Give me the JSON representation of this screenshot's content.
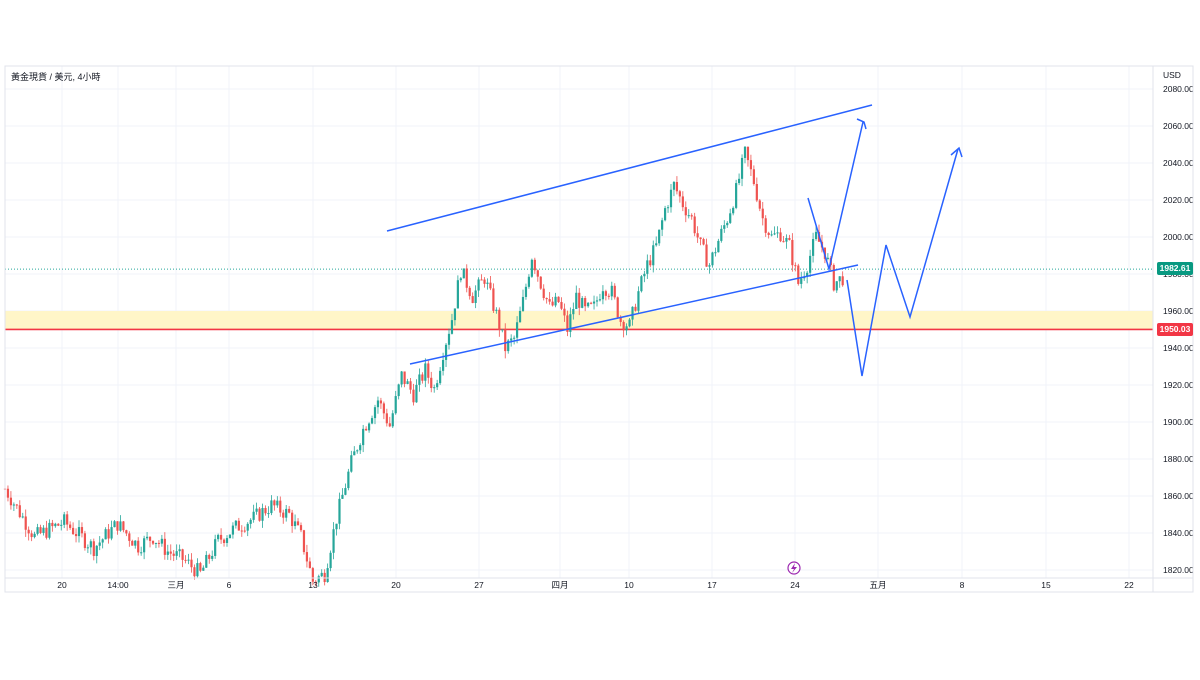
{
  "header": {
    "symbol_title": "黃金現貨 / 美元, 4小時",
    "currency": "USD"
  },
  "markers": {
    "current_price": "1982.61",
    "support_price": "1950.03",
    "event_icon": "lightning-icon"
  },
  "colors": {
    "up": "#26a69a",
    "down": "#ef5350",
    "channel": "#2962ff",
    "support_line": "#f23645",
    "support_zone": "#fff6c8",
    "current_price_tag": "#089981",
    "event_icon": "#9c27b0"
  },
  "chart_data": {
    "type": "candlestick",
    "y_axis": {
      "range": [
        1815,
        2085
      ],
      "tick_labels": [
        "2080.00",
        "2060.00",
        "2040.00",
        "2020.00",
        "2000.00",
        "1980.00",
        "1960.00",
        "1940.00",
        "1920.00",
        "1900.00",
        "1880.00",
        "1860.00",
        "1840.00",
        "1820.00"
      ]
    },
    "x_axis": {
      "tick_labels": [
        "20",
        "14:00",
        "三月",
        "6",
        "13",
        "20",
        "27",
        "四月",
        "10",
        "17",
        "24",
        "五月",
        "8",
        "15",
        "22"
      ]
    },
    "price_path": [
      [
        0,
        1864
      ],
      [
        10,
        1838
      ],
      [
        20,
        1846
      ],
      [
        30,
        1832
      ],
      [
        38,
        1845
      ],
      [
        45,
        1833
      ],
      [
        50,
        1838
      ],
      [
        55,
        1830
      ],
      [
        60,
        1826
      ],
      [
        66,
        1818
      ],
      [
        72,
        1836
      ],
      [
        78,
        1843
      ],
      [
        84,
        1848
      ],
      [
        90,
        1855
      ],
      [
        96,
        1850
      ],
      [
        100,
        1838
      ],
      [
        104,
        1814
      ],
      [
        108,
        1818
      ],
      [
        112,
        1848
      ],
      [
        117,
        1878
      ],
      [
        121,
        1896
      ],
      [
        126,
        1912
      ],
      [
        130,
        1898
      ],
      [
        134,
        1925
      ],
      [
        138,
        1915
      ],
      [
        142,
        1928
      ],
      [
        145,
        1918
      ],
      [
        148,
        1938
      ],
      [
        151,
        1956
      ],
      [
        154,
        1982
      ],
      [
        158,
        1968
      ],
      [
        162,
        1978
      ],
      [
        166,
        1958
      ],
      [
        169,
        1940
      ],
      [
        172,
        1945
      ],
      [
        175,
        1965
      ],
      [
        178,
        1990
      ],
      [
        181,
        1975
      ],
      [
        184,
        1962
      ],
      [
        187,
        1965
      ],
      [
        190,
        1950
      ],
      [
        193,
        1968
      ],
      [
        196,
        1960
      ],
      [
        199,
        1962
      ],
      [
        202,
        1974
      ],
      [
        205,
        1970
      ],
      [
        208,
        1955
      ],
      [
        211,
        1952
      ],
      [
        214,
        1970
      ],
      [
        217,
        1985
      ],
      [
        220,
        1995
      ],
      [
        223,
        2015
      ],
      [
        226,
        2028
      ],
      [
        229,
        2018
      ],
      [
        232,
        2010
      ],
      [
        235,
        1995
      ],
      [
        238,
        1985
      ],
      [
        241,
        1998
      ],
      [
        244,
        2010
      ],
      [
        247,
        2025
      ],
      [
        250,
        2045
      ],
      [
        253,
        2030
      ],
      [
        256,
        2010
      ],
      [
        259,
        2000
      ],
      [
        262,
        2002
      ],
      [
        265,
        1995
      ],
      [
        268,
        1975
      ],
      [
        271,
        1985
      ],
      [
        274,
        2000
      ],
      [
        277,
        1992
      ],
      [
        280,
        1975
      ],
      [
        283,
        1978
      ]
    ],
    "channel": {
      "upper": [
        [
          0,
          2003
        ],
        [
          200,
          2070
        ]
      ],
      "lower": [
        [
          10,
          1931
        ],
        [
          200,
          1984
        ]
      ]
    },
    "horizontal_levels": [
      1950.03,
      1982.61
    ],
    "support_zone": [
      1950,
      1960
    ],
    "projections": [
      [
        [
          190,
          2021
        ],
        [
          199,
          1982
        ],
        [
          211,
          2061
        ]
      ],
      [
        [
          198,
          1976
        ],
        [
          204,
          1925
        ],
        [
          216,
          1995
        ],
        [
          223,
          1957
        ],
        [
          238,
          2047
        ]
      ]
    ]
  }
}
